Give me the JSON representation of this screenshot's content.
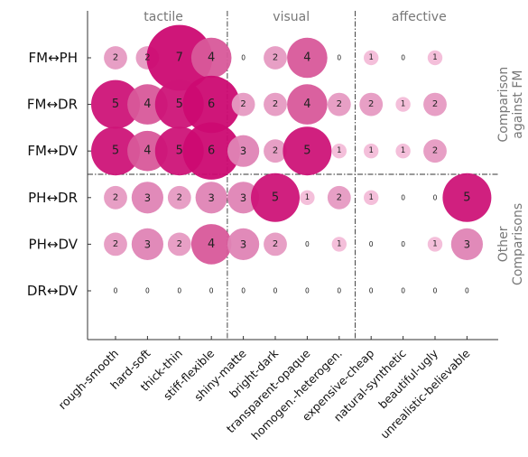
{
  "chart_data": {
    "type": "bubble-matrix",
    "column_groups": [
      {
        "label": "tactile",
        "columns": [
          "rough-smooth",
          "hard-soft",
          "thick-thin",
          "stiff-flexible"
        ]
      },
      {
        "label": "visual",
        "columns": [
          "shiny-matte",
          "bright-dark",
          "transparent-opaque",
          "homogen.-heterogen."
        ]
      },
      {
        "label": "affective",
        "columns": [
          "expensive-cheap",
          "natural-synthetic",
          "beautiful-ugly",
          "unrealistic-believable"
        ]
      }
    ],
    "columns": [
      "rough-smooth",
      "hard-soft",
      "thick-thin",
      "stiff-flexible",
      "shiny-matte",
      "bright-dark",
      "transparent-opaque",
      "homogen.-heterogen.",
      "expensive-cheap",
      "natural-synthetic",
      "beautiful-ugly",
      "unrealistic-believable"
    ],
    "rows": [
      "FM↔PH",
      "FM↔DR",
      "FM↔DV",
      "PH↔DR",
      "PH↔DV",
      "DR↔DV"
    ],
    "row_groups": [
      {
        "label_lines": [
          "Comparison",
          "against FM"
        ],
        "rows": [
          "FM↔PH",
          "FM↔DR",
          "FM↔DV"
        ]
      },
      {
        "label_lines": [
          "Other",
          "Comparisons"
        ],
        "rows": [
          "PH↔DR",
          "PH↔DV",
          "DR↔DV"
        ]
      }
    ],
    "values": [
      [
        2,
        2,
        7,
        4,
        0,
        2,
        4,
        0,
        1,
        0,
        1,
        null
      ],
      [
        5,
        4,
        5,
        6,
        2,
        2,
        4,
        2,
        2,
        1,
        2,
        null
      ],
      [
        5,
        4,
        5,
        6,
        3,
        2,
        5,
        1,
        1,
        1,
        2,
        null
      ],
      [
        2,
        3,
        2,
        3,
        3,
        5,
        1,
        2,
        1,
        0,
        0,
        5
      ],
      [
        2,
        3,
        2,
        4,
        3,
        2,
        0,
        1,
        0,
        0,
        1,
        3
      ],
      [
        0,
        0,
        0,
        0,
        0,
        0,
        0,
        0,
        0,
        0,
        0,
        0
      ]
    ],
    "colors": {
      "1": "#f3bcd8",
      "2": "#e69ac2",
      "3": "#df84b5",
      "4": "#d8589a",
      "5": "#cd1478",
      "6": "#cc0a72",
      "7": "#cc0a72",
      "label": "#222222",
      "group_label": "#777777",
      "axis": "#333333",
      "divider": "#333333"
    }
  }
}
